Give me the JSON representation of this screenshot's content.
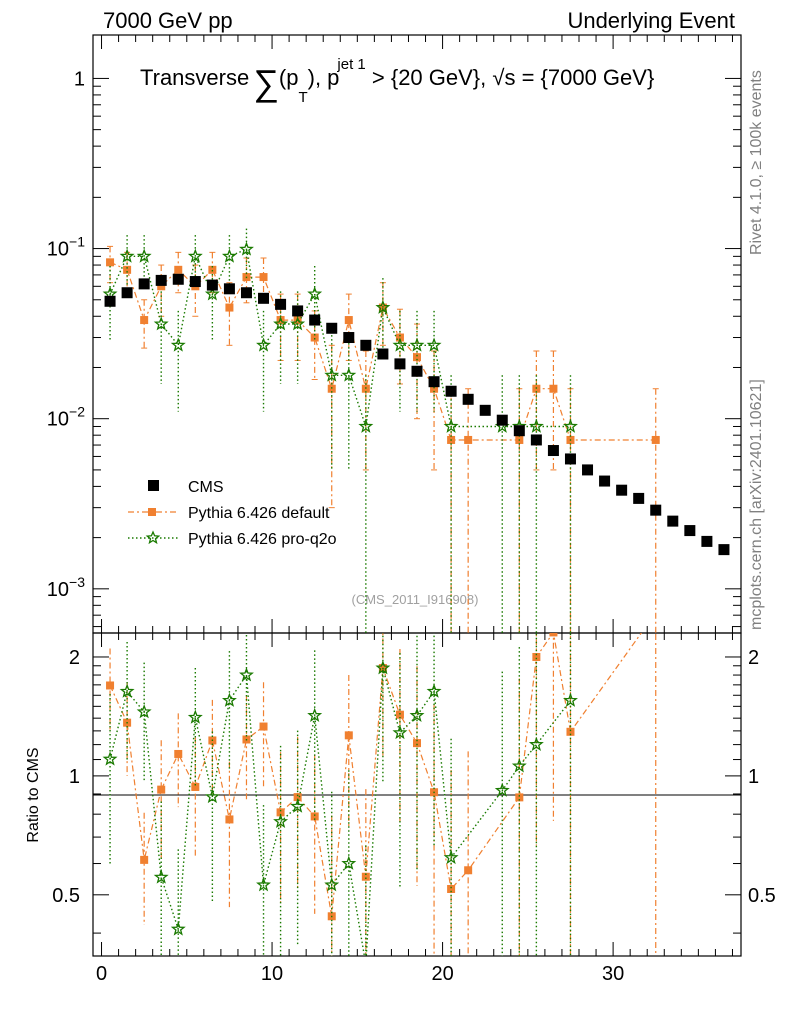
{
  "header": {
    "left": "7000 GeV pp",
    "right": "Underlying Event"
  },
  "side": {
    "rivet": "Rivet 4.1.0, ≥ 100k events",
    "mcplots": "mcplots.cern.ch [arXiv:2401.10621]"
  },
  "chart_data": {
    "type": "scatter",
    "title_parts": {
      "pre": "Transverse",
      "sum": "∑",
      "open": "(p",
      "sub_t": "T",
      "close": "), p",
      "sup_jet": "jet 1",
      "post": " > {20 GeV}, √s = {7000 GeV}"
    },
    "watermark": "(CMS_2011_I916908)",
    "ratio_ylabel": "Ratio to CMS",
    "xlim": [
      -0.5,
      37.5
    ],
    "ylim": [
      0.00055,
      1.8
    ],
    "ratio_ylim": [
      0.35,
      2.3
    ],
    "x_ticks": [
      0,
      10,
      20,
      30
    ],
    "x_tick_labels": [
      "0",
      "10",
      "20",
      "30"
    ],
    "y_ticks": [
      1,
      0.1,
      0.01,
      0.001
    ],
    "y_tick_labels": {
      "base": "10",
      "exp": [
        "",
        "−1",
        "−2",
        "−3"
      ],
      "one": "1"
    },
    "ratio_ticks": [
      0.5,
      1,
      2
    ],
    "ratio_tick_labels": [
      "0.5",
      "1",
      "2"
    ],
    "legend": [
      "CMS",
      "Pythia 6.426 default",
      "Pythia 6.426 pro-q2o"
    ],
    "colors": {
      "cms": "#000000",
      "default": "#f08030",
      "proq2o": "#1a7a00"
    },
    "series": [
      {
        "name": "CMS",
        "x": [
          0.5,
          1.5,
          2.5,
          3.5,
          4.5,
          5.5,
          6.5,
          7.5,
          8.5,
          9.5,
          10.5,
          11.5,
          12.5,
          13.5,
          14.5,
          15.5,
          16.5,
          17.5,
          18.5,
          19.5,
          20.5,
          21.5,
          22.5,
          23.5,
          24.5,
          25.5,
          26.5,
          27.5,
          28.5,
          29.5,
          30.5,
          31.5,
          32.5,
          33.5,
          34.5,
          35.5,
          36.5
        ],
        "values": [
          0.049,
          0.055,
          0.062,
          0.065,
          0.066,
          0.064,
          0.061,
          0.058,
          0.055,
          0.051,
          0.047,
          0.043,
          0.038,
          0.034,
          0.03,
          0.027,
          0.024,
          0.021,
          0.019,
          0.0165,
          0.0145,
          0.013,
          0.0112,
          0.0098,
          0.0085,
          0.0075,
          0.0065,
          0.0058,
          0.005,
          0.0043,
          0.0038,
          0.0034,
          0.0029,
          0.0025,
          0.0022,
          0.0019,
          0.0017
        ]
      },
      {
        "name": "Pythia 6.426 default",
        "x": [
          0.5,
          1.5,
          2.5,
          3.5,
          4.5,
          5.5,
          6.5,
          7.5,
          8.5,
          9.5,
          10.5,
          11.5,
          12.5,
          13.5,
          14.5,
          15.5,
          16.5,
          17.5,
          18.5,
          19.5,
          20.5,
          21.5,
          24.5,
          25.5,
          26.5,
          27.5,
          32.5
        ],
        "values": [
          0.083,
          0.075,
          0.038,
          0.06,
          0.075,
          0.06,
          0.075,
          0.045,
          0.068,
          0.068,
          0.038,
          0.038,
          0.03,
          0.015,
          0.038,
          0.015,
          0.045,
          0.03,
          0.023,
          0.015,
          0.0075,
          0.0075,
          0.0075,
          0.015,
          0.015,
          0.0075,
          0.0075
        ],
        "errors": [
          0.02,
          0.02,
          0.012,
          0.02,
          0.02,
          0.02,
          0.02,
          0.018,
          0.02,
          0.02,
          0.016,
          0.016,
          0.013,
          0.012,
          0.016,
          0.01,
          0.018,
          0.014,
          0.013,
          0.01,
          0.0075,
          0.0075,
          0.0075,
          0.01,
          0.01,
          0.0075,
          0.0075
        ]
      },
      {
        "name": "Pythia 6.426 pro-q2o",
        "x": [
          0.5,
          1.5,
          2.5,
          3.5,
          4.5,
          5.5,
          6.5,
          7.5,
          8.5,
          9.5,
          10.5,
          11.5,
          12.5,
          13.5,
          14.5,
          15.5,
          16.5,
          17.5,
          18.5,
          19.5,
          20.5,
          23.5,
          24.5,
          25.5,
          27.5
        ],
        "values": [
          0.054,
          0.09,
          0.09,
          0.036,
          0.027,
          0.09,
          0.054,
          0.09,
          0.099,
          0.027,
          0.036,
          0.036,
          0.054,
          0.018,
          0.018,
          0.009,
          0.045,
          0.027,
          0.027,
          0.027,
          0.009,
          0.009,
          0.009,
          0.009,
          0.009
        ],
        "errors": [
          0.025,
          0.03,
          0.03,
          0.02,
          0.016,
          0.03,
          0.025,
          0.03,
          0.032,
          0.016,
          0.02,
          0.02,
          0.025,
          0.013,
          0.013,
          0.009,
          0.022,
          0.016,
          0.016,
          0.016,
          0.009,
          0.009,
          0.009,
          0.009,
          0.009
        ]
      }
    ]
  }
}
